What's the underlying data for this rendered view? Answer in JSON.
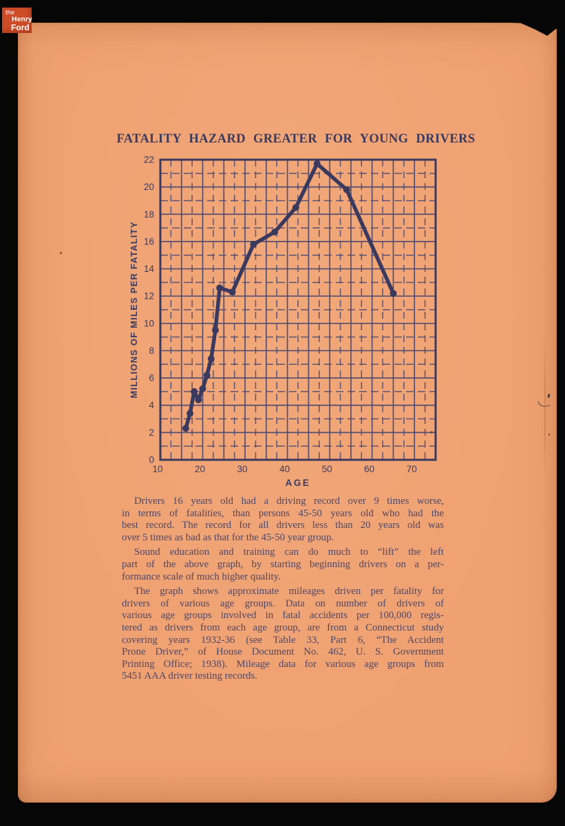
{
  "colors": {
    "bg": "#060606",
    "paper": "#f0a171",
    "ink": "#3b3a5e",
    "grid": "#4c4a72",
    "text": "#4d4768",
    "logo_red": "#ce4b28",
    "logo_text": "#ffffff"
  },
  "logo": {
    "the": "the",
    "henry": "Henry",
    "ford": "Ford"
  },
  "title": "FATALITY HAZARD GREATER FOR YOUNG DRIVERS",
  "chart_data": {
    "type": "line",
    "title": "FATALITY HAZARD GREATER FOR YOUNG DRIVERS",
    "xlabel": "AGE",
    "ylabel": "MILLIONS OF MILES PER FATALITY",
    "xlim": [
      10,
      75
    ],
    "ylim": [
      0,
      22
    ],
    "x_ticks": [
      10,
      20,
      30,
      40,
      50,
      60,
      70
    ],
    "y_ticks": [
      0,
      2,
      4,
      6,
      8,
      10,
      12,
      14,
      16,
      18,
      20,
      22
    ],
    "x_grid_major_step": 5,
    "x_grid_minor_offset": 2.5,
    "y_grid_major_step": 2,
    "y_grid_minor_offset": 1,
    "grid": "major solid, minor dashed",
    "legend": "none",
    "series": [
      {
        "name": "millions_of_miles_per_fatality",
        "points": [
          [
            16,
            2.3
          ],
          [
            17,
            3.4
          ],
          [
            18,
            5.0
          ],
          [
            19,
            4.4
          ],
          [
            20,
            5.2
          ],
          [
            21,
            6.2
          ],
          [
            22,
            7.4
          ],
          [
            23,
            9.5
          ],
          [
            24,
            12.6
          ],
          [
            27,
            12.3
          ],
          [
            32,
            15.8
          ],
          [
            37,
            16.7
          ],
          [
            42,
            18.5
          ],
          [
            47,
            21.7
          ],
          [
            54,
            19.8
          ],
          [
            65,
            12.2
          ]
        ]
      }
    ]
  },
  "paragraphs": [
    {
      "lines": [
        "Drivers 16 years old had a driving record over 9 times worse,",
        "in terms of fatalities, than persons 45-50 years old who had the",
        "best record.  The record for all drivers less than 20 years old was",
        "over 5 times as bad as that for the 45-50 year group."
      ]
    },
    {
      "lines": [
        "Sound education and training can do much to “lift” the left",
        "part of the above graph, by starting beginning drivers on a per-",
        "formance scale of much higher quality."
      ]
    },
    {
      "lines": [
        "The graph shows approximate mileages driven per fatality for",
        "drivers of various age groups.  Data on number of drivers of",
        "various age groups involved in fatal accidents per 100,000 regis-",
        "tered as drivers from each age group, are from a Connecticut study",
        "covering years 1932-36 (see Table 33, Part 6, “The Accident",
        "Prone Driver,” of House Document No. 462, U. S. Government",
        "Printing Office; 1938).  Mileage data for various age groups from",
        "5451 AAA driver testing records."
      ]
    }
  ]
}
